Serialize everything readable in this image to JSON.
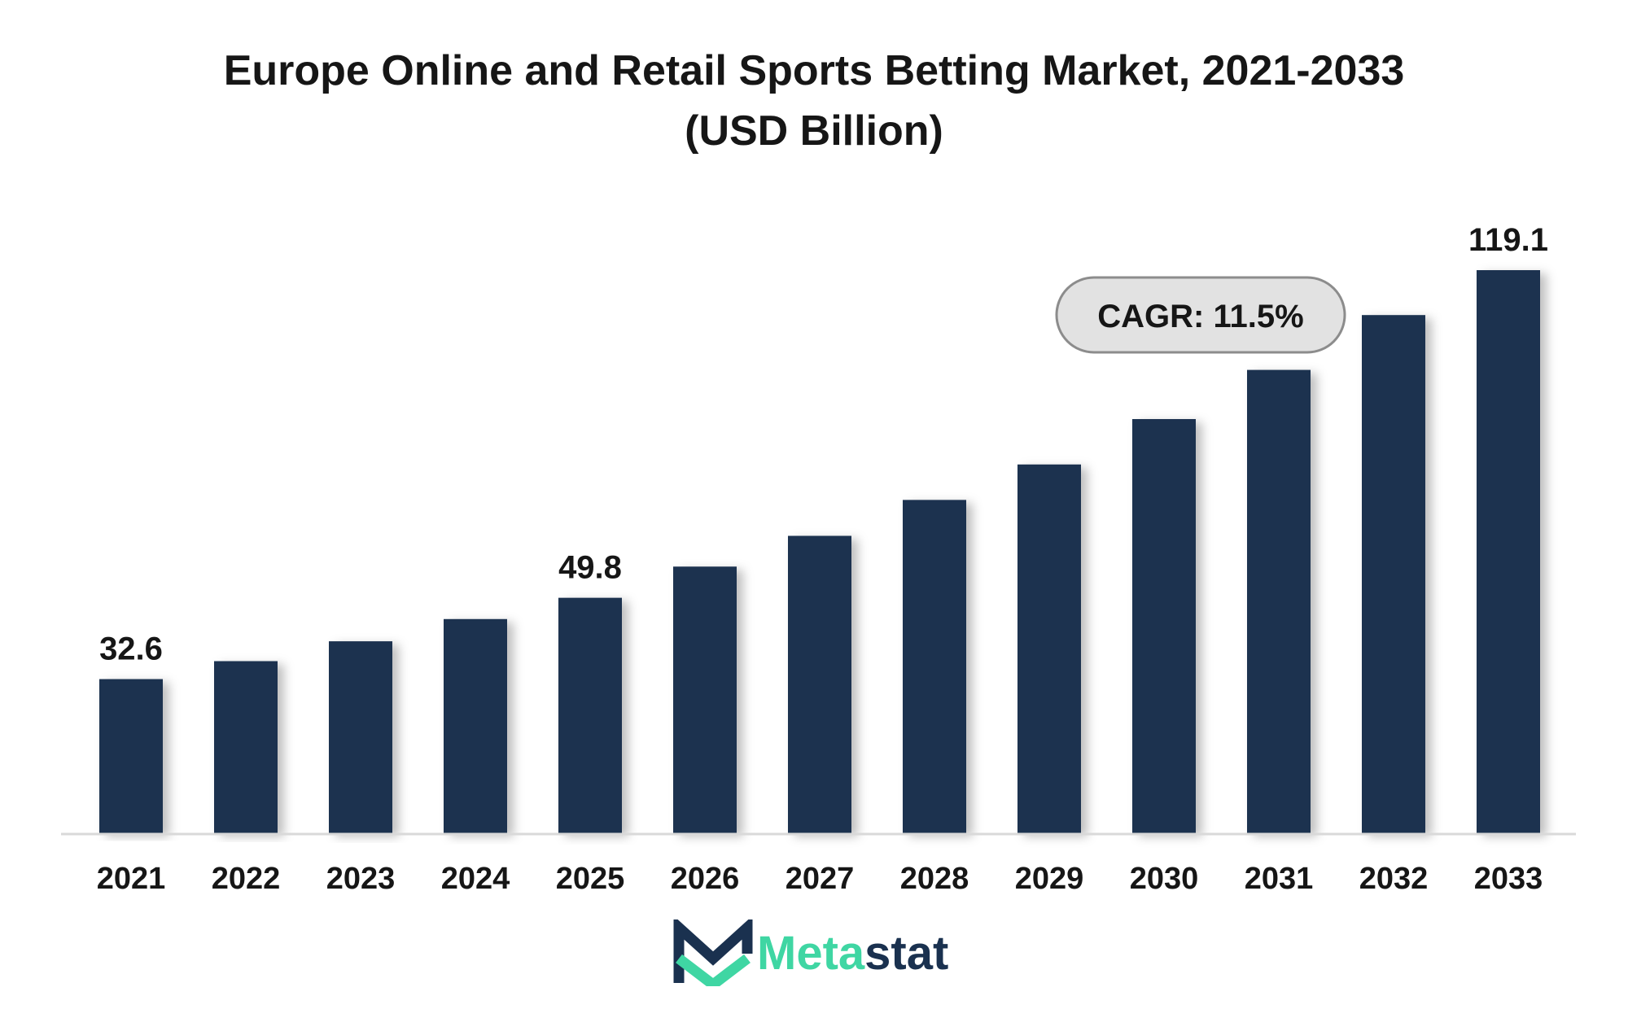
{
  "chart_data": {
    "type": "bar",
    "title": "Europe Online and Retail Sports Betting Market, 2021-2033",
    "subtitle": "(USD Billion)",
    "categories": [
      "2021",
      "2022",
      "2023",
      "2024",
      "2025",
      "2026",
      "2027",
      "2028",
      "2029",
      "2030",
      "2031",
      "2032",
      "2033"
    ],
    "values": [
      32.6,
      36.4,
      40.6,
      45.3,
      49.8,
      56.4,
      62.9,
      70.5,
      78.0,
      87.6,
      98.0,
      109.6,
      119.1
    ],
    "data_labels": {
      "0": "32.6",
      "4": "49.8",
      "12": "119.1"
    },
    "annotation": "CAGR: 11.5%",
    "ylim": [
      0,
      119.1
    ],
    "grid": false,
    "bar_color": "#1a314f"
  },
  "logo": {
    "part1": "Meta",
    "part2": "stat",
    "color1": "#3fd6a3",
    "color2": "#1a314f"
  }
}
